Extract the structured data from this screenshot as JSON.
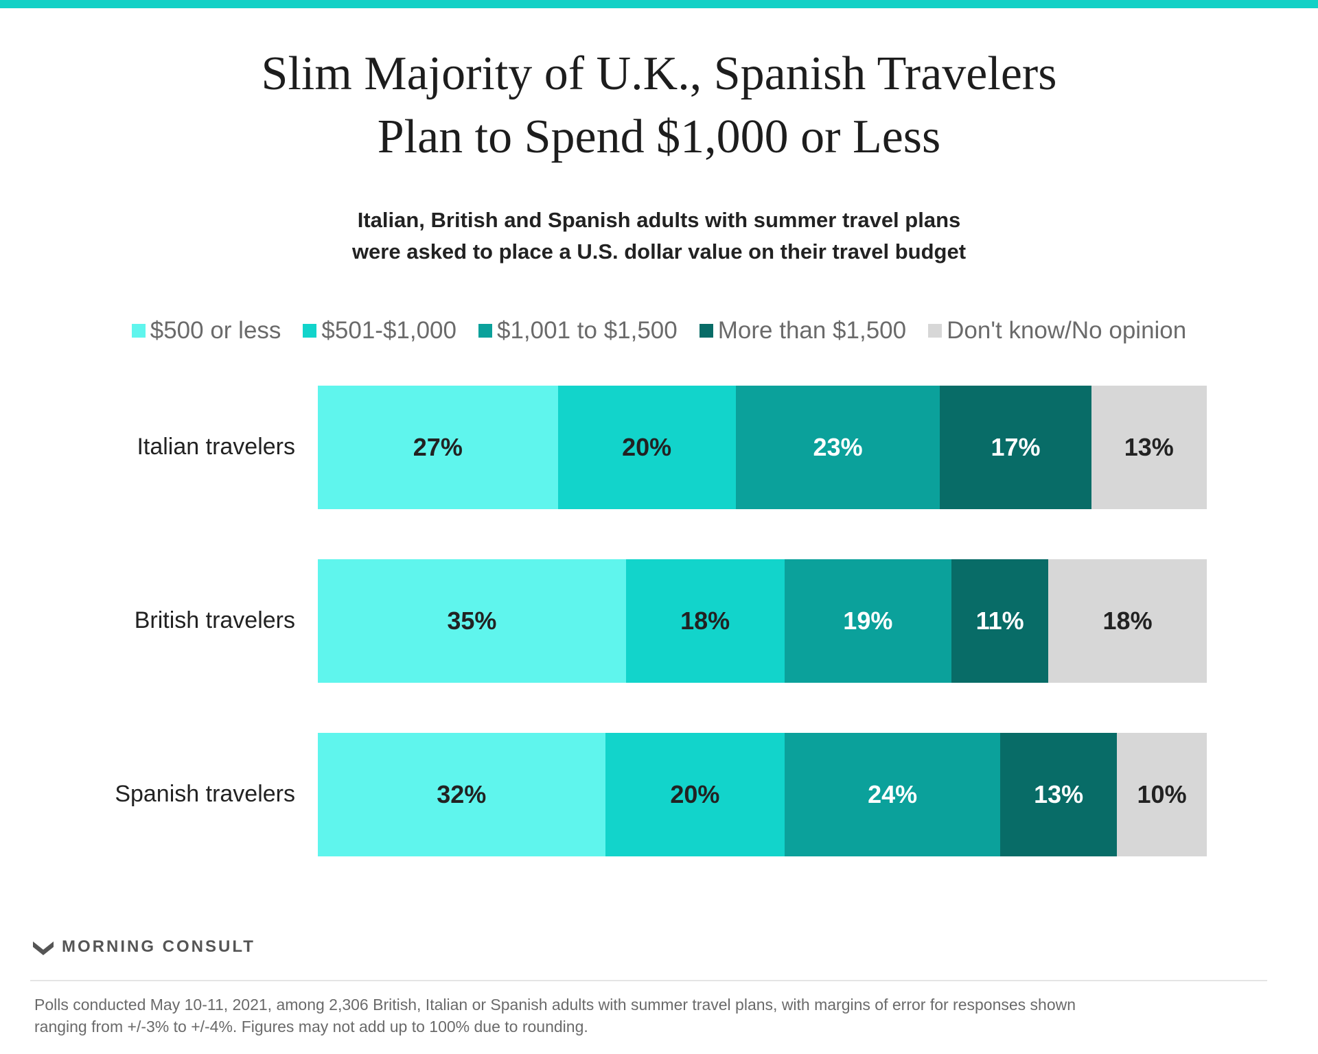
{
  "title": {
    "line1": "Slim Majority of U.K., Spanish Travelers",
    "line2": "Plan to Spend $1,000 or Less"
  },
  "subtitle": {
    "line1": "Italian, British and Spanish adults with summer travel plans",
    "line2": "were asked to place a U.S. dollar value on their travel budget"
  },
  "colors": {
    "accent_bar": "#12d1c6",
    "series": [
      "#5ff5ed",
      "#12d4cb",
      "#0ba19b",
      "#086c67",
      "#d7d7d7"
    ],
    "label_text_dark": "#222222",
    "label_text_light": "#ffffff"
  },
  "chart_data": {
    "type": "bar",
    "orientation": "horizontal",
    "stacked": true,
    "categories": [
      "Italian travelers",
      "British travelers",
      "Spanish travelers"
    ],
    "series": [
      {
        "name": "$500 or less",
        "values": [
          27,
          35,
          32
        ],
        "labels": [
          "27%",
          "35%",
          "32%"
        ]
      },
      {
        "name": "$501-$1,000",
        "values": [
          20,
          18,
          20
        ],
        "labels": [
          "20%",
          "18%",
          "20%"
        ]
      },
      {
        "name": "$1,001 to $1,500",
        "values": [
          23,
          19,
          24
        ],
        "labels": [
          "23%",
          "19%",
          "24%"
        ]
      },
      {
        "name": "More than $1,500",
        "values": [
          17,
          11,
          13
        ],
        "labels": [
          "17%",
          "11%",
          "13%"
        ]
      },
      {
        "name": "Don't know/No opinion",
        "values": [
          13,
          18,
          10
        ],
        "labels": [
          "13%",
          "18%",
          "10%"
        ]
      }
    ],
    "legend_position": "top",
    "grid": false,
    "axes_visible": false
  },
  "brand": {
    "logo_text": "MORNING CONSULT"
  },
  "footnote": {
    "line1": "Polls conducted May 10-11, 2021, among 2,306 British, Italian or Spanish adults with summer travel plans, with margins of error for responses shown",
    "line2": "ranging from +/-3% to +/-4%. Figures may not add up to 100% due to rounding."
  }
}
